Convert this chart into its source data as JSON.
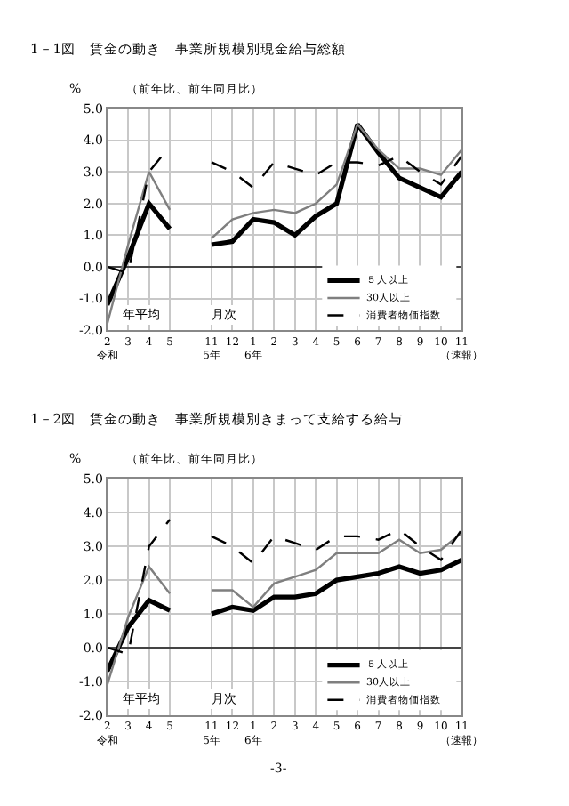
{
  "chart_data": [
    {
      "type": "line",
      "title": "1－1図　賃金の動き　事業所規模別現金給与総額",
      "subtitle": "（前年比、前年同月比）",
      "ylabel": "%",
      "categories": [
        "2\n令和",
        "3",
        "4",
        "5",
        null,
        "11\n5年",
        "12",
        "1\n6年",
        "2",
        "3",
        "4",
        "5",
        "6",
        "7",
        "8",
        "9",
        "10",
        "11\n（速報）"
      ],
      "series": [
        {
          "name": "５人以上",
          "color": "#000000",
          "values": [
            -1.2,
            0.3,
            2.0,
            1.2,
            null,
            0.7,
            0.8,
            1.5,
            1.4,
            1.0,
            1.6,
            2.0,
            4.5,
            3.6,
            2.8,
            2.5,
            2.2,
            3.0
          ]
        },
        {
          "name": "30人以上",
          "color": "#7f7f7f",
          "values": [
            -1.8,
            0.7,
            3.0,
            1.8,
            null,
            0.9,
            1.5,
            1.7,
            1.8,
            1.7,
            2.0,
            2.6,
            4.5,
            3.7,
            3.1,
            3.1,
            2.9,
            3.7
          ]
        },
        {
          "name": "消費者物価指数",
          "color": "#000000",
          "line_style": "dashed",
          "values": [
            0.0,
            -0.2,
            3.0,
            3.8,
            null,
            3.3,
            3.0,
            2.5,
            3.3,
            3.1,
            2.9,
            3.3,
            3.3,
            3.2,
            3.5,
            3.0,
            2.6,
            3.5
          ]
        }
      ],
      "ylim": [
        -2.0,
        5.0
      ],
      "yticks": [
        {
          "value": -2,
          "label": "-2.0"
        },
        {
          "value": -1,
          "label": "-1.0"
        },
        {
          "value": 0,
          "label": "0.0"
        },
        {
          "value": 1,
          "label": "1.0"
        },
        {
          "value": 2,
          "label": "2.0"
        },
        {
          "value": 3,
          "label": "3.0"
        },
        {
          "value": 4,
          "label": "4.0"
        },
        {
          "value": 5,
          "label": "5.0"
        }
      ],
      "grid": true,
      "legend": "bottom right",
      "annotations": [
        "年平均",
        "月次"
      ]
    },
    {
      "type": "line",
      "title": "1－2図　賃金の動き　事業所規模別きまって支給する給与",
      "subtitle": "（前年比、前年同月比）",
      "ylabel": "%",
      "categories": [
        "2\n令和",
        "3",
        "4",
        "5",
        null,
        "11\n5年",
        "12",
        "1\n6年",
        "2",
        "3",
        "4",
        "5",
        "6",
        "7",
        "8",
        "9",
        "10",
        "11\n（速報）"
      ],
      "series": [
        {
          "name": "５人以上",
          "color": "#000000",
          "values": [
            -0.7,
            0.6,
            1.4,
            1.1,
            null,
            1.0,
            1.2,
            1.1,
            1.5,
            1.5,
            1.6,
            2.0,
            2.1,
            2.2,
            2.4,
            2.2,
            2.3,
            2.6
          ]
        },
        {
          "name": "30人以上",
          "color": "#7f7f7f",
          "values": [
            -1.1,
            0.9,
            2.4,
            1.6,
            null,
            1.7,
            1.7,
            1.2,
            1.9,
            2.1,
            2.3,
            2.8,
            2.8,
            2.8,
            3.2,
            2.8,
            2.9,
            3.4
          ]
        },
        {
          "name": "消費者物価指数",
          "color": "#000000",
          "line_style": "dashed",
          "values": [
            0.0,
            -0.2,
            3.0,
            3.8,
            null,
            3.3,
            3.0,
            2.5,
            3.3,
            3.1,
            2.9,
            3.3,
            3.3,
            3.2,
            3.5,
            3.0,
            2.6,
            3.5
          ]
        }
      ],
      "ylim": [
        -2.0,
        5.0
      ],
      "yticks": [
        {
          "value": -2,
          "label": "-2.0"
        },
        {
          "value": -1,
          "label": "-1.0"
        },
        {
          "value": 0,
          "label": "0.0"
        },
        {
          "value": 1,
          "label": "1.0"
        },
        {
          "value": 2,
          "label": "2.0"
        },
        {
          "value": 3,
          "label": "3.0"
        },
        {
          "value": 4,
          "label": "4.0"
        },
        {
          "value": 5,
          "label": "5.0"
        }
      ],
      "grid": true,
      "legend": "bottom right",
      "annotations": [
        "年平均",
        "月次",
        "-3-"
      ]
    }
  ]
}
